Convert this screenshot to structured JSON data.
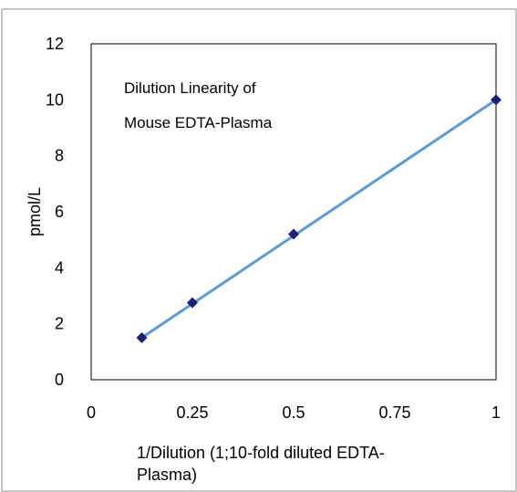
{
  "chart_data": {
    "type": "scatter",
    "x": [
      0.125,
      0.25,
      0.5,
      1
    ],
    "y": [
      1.5,
      2.75,
      5.2,
      10.0
    ],
    "trendline": {
      "x": [
        0.125,
        1
      ],
      "y": [
        1.5,
        10.0
      ]
    },
    "annotation": [
      "Dilution Linearity of",
      "Mouse EDTA-Plasma"
    ],
    "xlabel": [
      "1/Dilution (1;10-fold diluted EDTA-",
      "Plasma)"
    ],
    "ylabel": "pmol/L",
    "xticks": [
      0,
      0.25,
      0.5,
      0.75,
      1
    ],
    "xtick_labels": [
      "0",
      "0.25",
      "0.5",
      "0.75",
      "1"
    ],
    "yticks": [
      0,
      2,
      4,
      6,
      8,
      10,
      12
    ],
    "ytick_labels": [
      "0",
      "2",
      "4",
      "6",
      "8",
      "10",
      "12"
    ],
    "xlim": [
      0,
      1
    ],
    "ylim": [
      0,
      12
    ],
    "grid": false,
    "colors": {
      "line": "#5b9bd5",
      "marker": "#1f1f7a",
      "frame": "#808080"
    }
  }
}
